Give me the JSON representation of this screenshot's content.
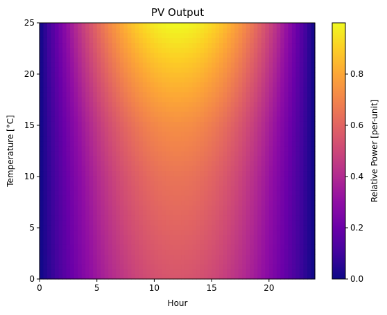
{
  "chart_data": {
    "type": "heatmap",
    "title": "PV Output",
    "xlabel": "Hour",
    "ylabel": "Temperature [°C]",
    "colorbar_label": "Relative Power [per-unit]",
    "colormap": "plasma",
    "x_range": [
      0,
      24
    ],
    "y_range": [
      0,
      25
    ],
    "value_range": [
      0.0,
      1.0
    ],
    "x_ticks": [
      "0",
      "5",
      "10",
      "15",
      "20"
    ],
    "y_ticks": [
      "0",
      "5",
      "10",
      "15",
      "20",
      "25"
    ],
    "colorbar_ticks": [
      "0.0",
      "0.2",
      "0.4",
      "0.6",
      "0.8"
    ],
    "peak_hour": 12,
    "value_at_peak_hour_by_temperature": [
      {
        "temperature": 0,
        "value": 0.55
      },
      {
        "temperature": 5,
        "value": 0.6
      },
      {
        "temperature": 10,
        "value": 0.65
      },
      {
        "temperature": 15,
        "value": 0.73
      },
      {
        "temperature": 20,
        "value": 0.86
      },
      {
        "temperature": 25,
        "value": 1.0
      }
    ],
    "value_at_edges_hour_0_and_24": 0.0,
    "grid": false
  }
}
